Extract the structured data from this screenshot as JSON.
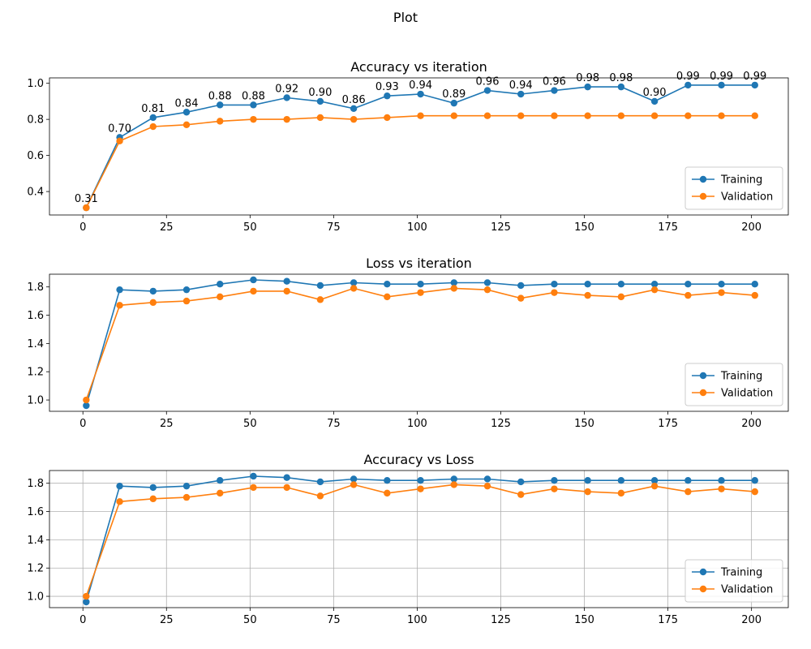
{
  "figure_title": "Plot",
  "colors": {
    "training": "#1f77b4",
    "validation": "#ff7f0e",
    "grid": "#b0b0b0"
  },
  "chart_data": [
    {
      "type": "line",
      "title": "Accuracy vs iteration",
      "xlabel": "",
      "ylabel": "",
      "xlim": [
        -10,
        211
      ],
      "ylim": [
        0.27,
        1.03
      ],
      "xticks": [
        0,
        25,
        50,
        75,
        100,
        125,
        150,
        175,
        200
      ],
      "yticks": [
        0.4,
        0.6,
        0.8,
        1.0
      ],
      "ytick_labels": [
        "0.4",
        "0.6",
        "0.8",
        "1.0"
      ],
      "grid": false,
      "legend": "lower-right",
      "x": [
        1,
        11,
        21,
        31,
        41,
        51,
        61,
        71,
        81,
        91,
        101,
        111,
        121,
        131,
        141,
        151,
        161,
        171,
        181,
        191,
        201
      ],
      "series": [
        {
          "name": "Training",
          "values": [
            0.31,
            0.7,
            0.81,
            0.84,
            0.88,
            0.88,
            0.92,
            0.9,
            0.86,
            0.93,
            0.94,
            0.89,
            0.96,
            0.94,
            0.96,
            0.98,
            0.98,
            0.9,
            0.99,
            0.99,
            0.99
          ]
        },
        {
          "name": "Validation",
          "values": [
            0.31,
            0.68,
            0.76,
            0.77,
            0.79,
            0.8,
            0.8,
            0.81,
            0.8,
            0.81,
            0.82,
            0.82,
            0.82,
            0.82,
            0.82,
            0.82,
            0.82,
            0.82,
            0.82,
            0.82,
            0.82
          ]
        }
      ],
      "data_labels": [
        "0.31",
        "0.70",
        "0.81",
        "0.84",
        "0.88",
        "0.88",
        "0.92",
        "0.90",
        "0.86",
        "0.93",
        "0.94",
        "0.89",
        "0.96",
        "0.94",
        "0.96",
        "0.98",
        "0.98",
        "0.90",
        "0.99",
        "0.99",
        "0.99"
      ]
    },
    {
      "type": "line",
      "title": "Loss vs iteration",
      "xlabel": "",
      "ylabel": "",
      "xlim": [
        -10,
        211
      ],
      "ylim": [
        0.92,
        1.89
      ],
      "xticks": [
        0,
        25,
        50,
        75,
        100,
        125,
        150,
        175,
        200
      ],
      "yticks": [
        1.0,
        1.2,
        1.4,
        1.6,
        1.8
      ],
      "ytick_labels": [
        "1.0",
        "1.2",
        "1.4",
        "1.6",
        "1.8"
      ],
      "grid": false,
      "legend": "lower-right",
      "x": [
        1,
        11,
        21,
        31,
        41,
        51,
        61,
        71,
        81,
        91,
        101,
        111,
        121,
        131,
        141,
        151,
        161,
        171,
        181,
        191,
        201
      ],
      "series": [
        {
          "name": "Training",
          "values": [
            0.96,
            1.78,
            1.77,
            1.78,
            1.82,
            1.85,
            1.84,
            1.81,
            1.83,
            1.82,
            1.82,
            1.83,
            1.83,
            1.81,
            1.82,
            1.82,
            1.82,
            1.82,
            1.82,
            1.82,
            1.82
          ]
        },
        {
          "name": "Validation",
          "values": [
            1.0,
            1.67,
            1.69,
            1.7,
            1.73,
            1.77,
            1.77,
            1.71,
            1.79,
            1.73,
            1.76,
            1.79,
            1.78,
            1.72,
            1.76,
            1.74,
            1.73,
            1.78,
            1.74,
            1.76,
            1.74
          ]
        }
      ]
    },
    {
      "type": "line",
      "title": "Accuracy vs Loss",
      "xlabel": "",
      "ylabel": "",
      "xlim": [
        -10,
        211
      ],
      "ylim": [
        0.92,
        1.89
      ],
      "xticks": [
        0,
        25,
        50,
        75,
        100,
        125,
        150,
        175,
        200
      ],
      "yticks": [
        1.0,
        1.2,
        1.4,
        1.6,
        1.8
      ],
      "ytick_labels": [
        "1.0",
        "1.2",
        "1.4",
        "1.6",
        "1.8"
      ],
      "grid": true,
      "legend": "lower-right",
      "x": [
        1,
        11,
        21,
        31,
        41,
        51,
        61,
        71,
        81,
        91,
        101,
        111,
        121,
        131,
        141,
        151,
        161,
        171,
        181,
        191,
        201
      ],
      "series": [
        {
          "name": "Training",
          "values": [
            0.96,
            1.78,
            1.77,
            1.78,
            1.82,
            1.85,
            1.84,
            1.81,
            1.83,
            1.82,
            1.82,
            1.83,
            1.83,
            1.81,
            1.82,
            1.82,
            1.82,
            1.82,
            1.82,
            1.82,
            1.82
          ]
        },
        {
          "name": "Validation",
          "values": [
            1.0,
            1.67,
            1.69,
            1.7,
            1.73,
            1.77,
            1.77,
            1.71,
            1.79,
            1.73,
            1.76,
            1.79,
            1.78,
            1.72,
            1.76,
            1.74,
            1.73,
            1.78,
            1.74,
            1.76,
            1.74
          ]
        }
      ]
    }
  ]
}
